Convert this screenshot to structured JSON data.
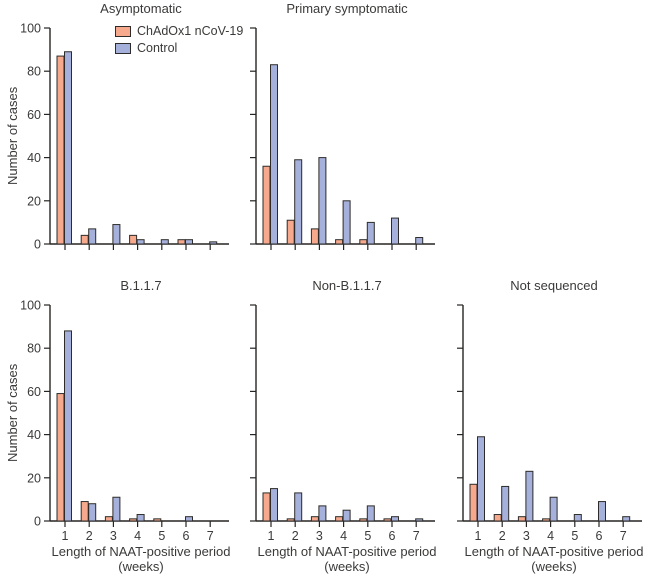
{
  "figure": {
    "background": "#ffffff"
  },
  "colors": {
    "chadox": "#f6a98c",
    "control": "#a5b1da",
    "bar_outline": "#2e2c2a",
    "axis": "#262523",
    "text": "#3b3a39"
  },
  "chart_data": {
    "type": "bar",
    "categories": [
      "1",
      "2",
      "3",
      "4",
      "5",
      "6",
      "7"
    ],
    "x_axis_label_line1": "Length of NAAT-positive period",
    "x_axis_label_line2": "(weeks)",
    "y_axis_label": "Number of cases",
    "ylim": [
      0,
      100
    ],
    "yticks": [
      0,
      20,
      40,
      60,
      80,
      100
    ],
    "grid": false,
    "legend_position": "top-left panel, inside upper left",
    "series_colors": {
      "ChAdOx1 nCoV-19": "#f6a98c",
      "Control": "#a5b1da"
    },
    "panels": [
      {
        "title": "Asymptomatic",
        "series": [
          {
            "name": "ChAdOx1 nCoV-19",
            "values": [
              87,
              4,
              0,
              4,
              0,
              2,
              0
            ]
          },
          {
            "name": "Control",
            "values": [
              89,
              7,
              9,
              2,
              2,
              2,
              1
            ]
          }
        ]
      },
      {
        "title": "Primary symptomatic",
        "series": [
          {
            "name": "ChAdOx1 nCoV-19",
            "values": [
              36,
              11,
              7,
              2,
              2,
              0,
              0
            ]
          },
          {
            "name": "Control",
            "values": [
              83,
              39,
              40,
              20,
              10,
              12,
              3
            ]
          }
        ]
      },
      {
        "title": "B.1.1.7",
        "series": [
          {
            "name": "ChAdOx1 nCoV-19",
            "values": [
              59,
              9,
              2,
              1,
              1,
              0,
              0
            ]
          },
          {
            "name": "Control",
            "values": [
              88,
              8,
              11,
              3,
              0,
              2,
              0
            ]
          }
        ]
      },
      {
        "title": "Non-B.1.1.7",
        "series": [
          {
            "name": "ChAdOx1 nCoV-19",
            "values": [
              13,
              1,
              2,
              2,
              1,
              1,
              0
            ]
          },
          {
            "name": "Control",
            "values": [
              15,
              13,
              7,
              5,
              7,
              2,
              1
            ]
          }
        ]
      },
      {
        "title": "Not sequenced",
        "series": [
          {
            "name": "ChAdOx1 nCoV-19",
            "values": [
              17,
              3,
              2,
              1,
              0,
              0,
              0
            ]
          },
          {
            "name": "Control",
            "values": [
              39,
              16,
              23,
              11,
              3,
              9,
              2
            ]
          }
        ]
      }
    ]
  }
}
